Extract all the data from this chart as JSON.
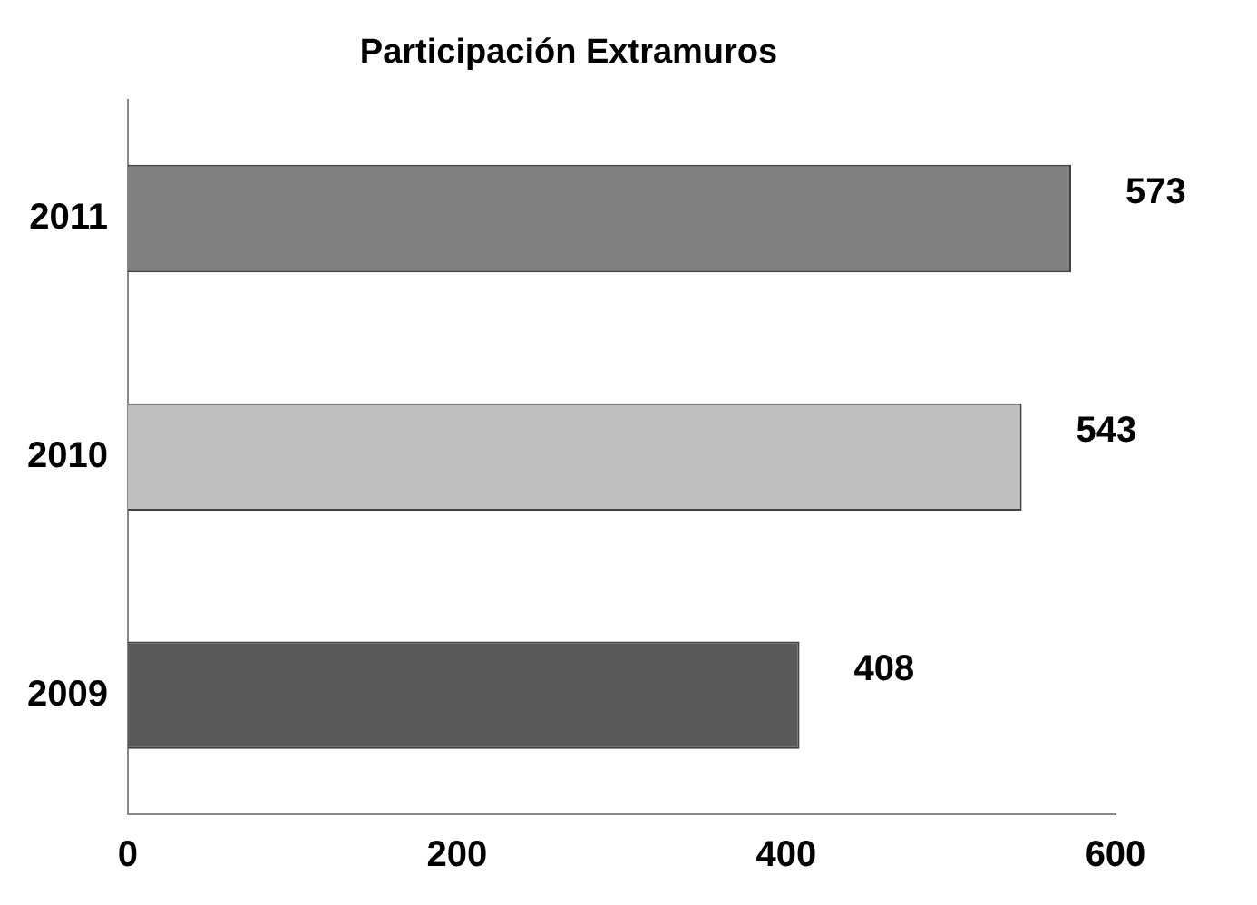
{
  "chart_data": {
    "type": "bar",
    "orientation": "horizontal",
    "title": "Participación Extramuros",
    "categories": [
      "2011",
      "2010",
      "2009"
    ],
    "values": [
      573,
      543,
      408
    ],
    "colors": [
      "#808080",
      "#c0c0c0",
      "#595959"
    ],
    "xlim": [
      0,
      600
    ],
    "xticks": [
      0,
      200,
      400,
      600
    ],
    "grid": false,
    "legend": false,
    "data_labels": true
  }
}
